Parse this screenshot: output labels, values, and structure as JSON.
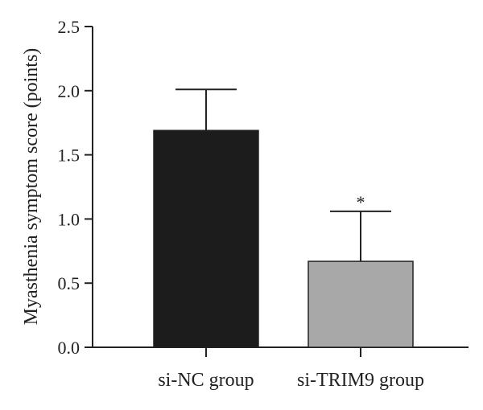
{
  "chart_data": {
    "type": "bar",
    "title": "",
    "xlabel": "",
    "ylabel": "Myasthenia symptom score (points)",
    "ylim": [
      0,
      2.5
    ],
    "yticks": [
      "0.0",
      "0.5",
      "1.0",
      "1.5",
      "2.0",
      "2.5"
    ],
    "categories": [
      "si-NC group",
      "si-TRIM9 group"
    ],
    "values": [
      1.69,
      0.67
    ],
    "errors": [
      0.32,
      0.39
    ],
    "colors": [
      "#1c1c1c",
      "#a8a8a8"
    ],
    "annotations": [
      "",
      "*"
    ],
    "grid": false,
    "legend": "none"
  }
}
